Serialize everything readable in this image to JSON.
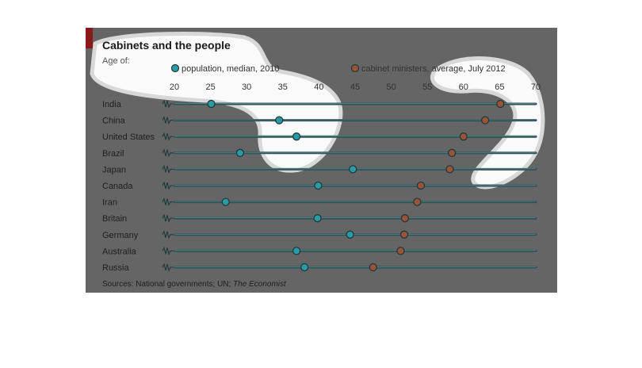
{
  "chart_data": {
    "type": "dot",
    "title": "Cabinets and the people",
    "subtitle": "Age of:",
    "source_prefix": "Sources: National governments; UN; ",
    "source_italic": "The Economist",
    "x_ticks": [
      "20",
      "25",
      "30",
      "35",
      "40",
      "45",
      "50",
      "55",
      "60",
      "65",
      "70"
    ],
    "xlim": [
      20,
      70
    ],
    "categories": [
      "India",
      "China",
      "United States",
      "Brazil",
      "Japan",
      "Canada",
      "Iran",
      "Britain",
      "Germany",
      "Australia",
      "Russia"
    ],
    "series": [
      {
        "name": "population, median, 2010",
        "color": "#2a9aa4",
        "values": [
          25.1,
          34.5,
          36.9,
          29.1,
          44.7,
          39.9,
          27.1,
          39.8,
          44.3,
          36.9,
          38.0
        ]
      },
      {
        "name": "cabinet ministers, average, July 2012",
        "color": "#9c5236",
        "values": [
          65.1,
          63.0,
          60.0,
          58.4,
          58.1,
          54.1,
          53.6,
          51.9,
          51.8,
          51.3,
          47.5
        ]
      }
    ],
    "legend_position": "top",
    "colors": {
      "panel": "#656565",
      "accent_bar": "#8a1a1a",
      "track": "#2f5356",
      "highlight": "#ffffff"
    }
  }
}
